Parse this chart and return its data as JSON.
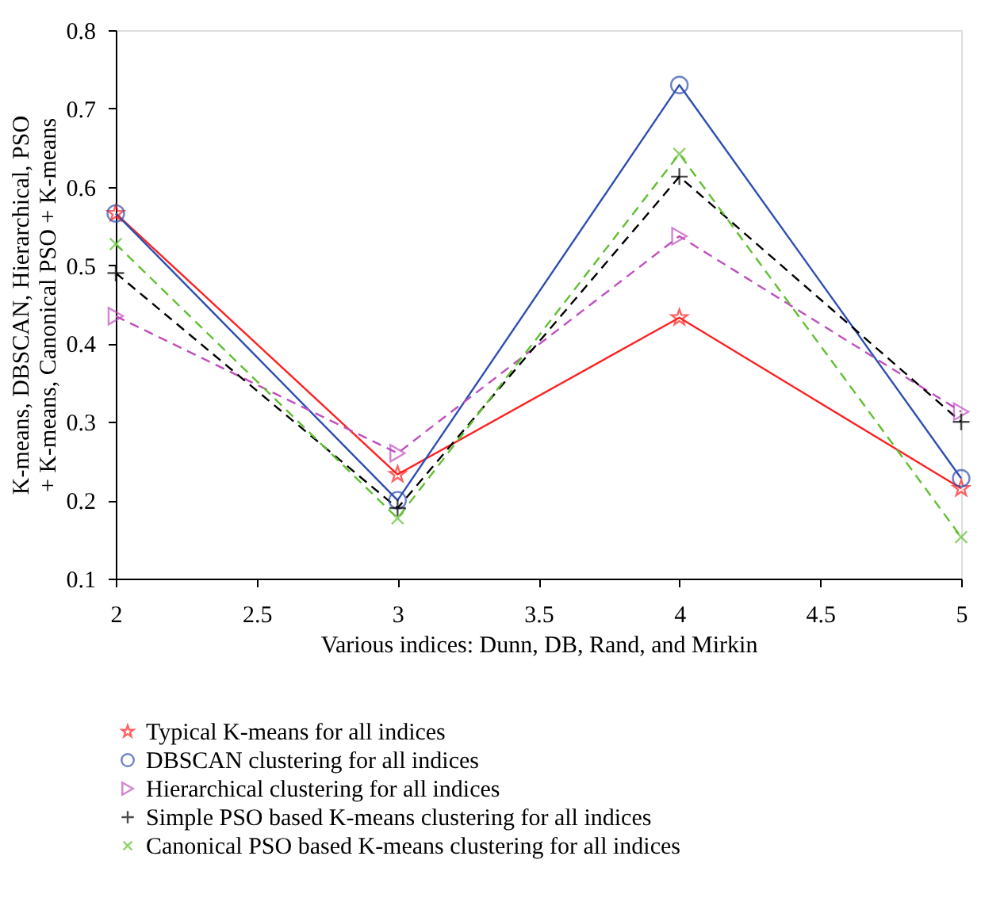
{
  "chart_data": {
    "type": "line",
    "xlabel": "Various indices: Dunn, DB, Rand, and Mirkin",
    "ylabel": "K-means, DBSCAN, Hierarchical, PSO + K-means, Canonical PSO + K-means",
    "x": [
      2,
      3,
      4,
      5
    ],
    "xlim": [
      2,
      5
    ],
    "xticks": [
      2,
      2.5,
      3,
      3.5,
      4,
      4.5,
      5
    ],
    "ylim": [
      0.1,
      0.8
    ],
    "yticks": [
      0.1,
      0.2,
      0.3,
      0.4,
      0.5,
      0.6,
      0.7,
      0.8
    ],
    "grid": false,
    "legend": "bottom",
    "series": [
      {
        "name": "Typical K-means for all indices",
        "color": "#ff2020",
        "marker": "star",
        "line_style": "solid",
        "values": [
          0.566,
          0.233,
          0.433,
          0.215
        ]
      },
      {
        "name": "DBSCAN clustering for all indices",
        "color": "#2e4fb0",
        "marker": "circle",
        "line_style": "solid",
        "values": [
          0.566,
          0.2,
          0.73,
          0.228
        ]
      },
      {
        "name": "Hierarchical clustering for all indices",
        "color": "#c04fc0",
        "marker": "triangle",
        "line_style": "dashed",
        "values": [
          0.435,
          0.26,
          0.537,
          0.313
        ]
      },
      {
        "name": "Simple PSO based K-means clustering for all indices",
        "color": "#000000",
        "marker": "cross",
        "line_style": "dashed",
        "values": [
          0.49,
          0.19,
          0.613,
          0.3
        ]
      },
      {
        "name": "Canonical PSO based K-means clustering for all indices",
        "color": "#60c030",
        "marker": "x",
        "line_style": "dashed",
        "values": [
          0.527,
          0.177,
          0.642,
          0.153
        ]
      }
    ]
  }
}
